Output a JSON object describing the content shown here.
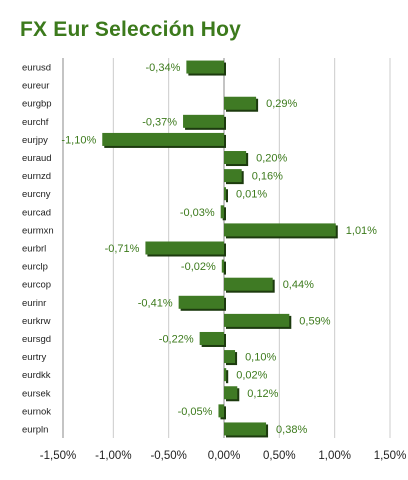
{
  "chart_data": {
    "type": "bar",
    "orientation": "horizontal",
    "title": "FX Eur Selección Hoy",
    "categories": [
      "eurusd",
      "eureur",
      "eurgbp",
      "eurchf",
      "eurjpy",
      "euraud",
      "eurnzd",
      "eurcny",
      "eurcad",
      "eurmxn",
      "eurbrl",
      "eurclp",
      "eurcop",
      "eurinr",
      "eurkrw",
      "eursgd",
      "eurtry",
      "eurdkk",
      "eursek",
      "eurnok",
      "eurpln"
    ],
    "values": [
      -0.34,
      null,
      0.29,
      -0.37,
      -1.1,
      0.2,
      0.16,
      0.01,
      -0.03,
      1.01,
      -0.71,
      -0.02,
      0.44,
      -0.41,
      0.59,
      -0.22,
      0.1,
      0.02,
      0.12,
      -0.05,
      0.38
    ],
    "value_labels": [
      "-0,34%",
      "",
      "0,29%",
      "-0,37%",
      "-1,10%",
      "0,20%",
      "0,16%",
      "0,01%",
      "-0,03%",
      "1,01%",
      "-0,71%",
      "-0,02%",
      "0,44%",
      "-0,41%",
      "0,59%",
      "-0,22%",
      "0,10%",
      "0,02%",
      "0,12%",
      "-0,05%",
      "0,38%"
    ],
    "xlim": [
      -1.5,
      1.5
    ],
    "xticks": [
      -1.5,
      -1.0,
      -0.5,
      0.0,
      0.5,
      1.0,
      1.5
    ],
    "xtick_labels": [
      "-1,50%",
      "-1,00%",
      "-0,50%",
      "0,00%",
      "0,50%",
      "1,00%",
      "1,50%"
    ],
    "grid": true,
    "colors": {
      "bar": "#3f7a24",
      "bar_shadow": "#1c3a0e",
      "label": "#3c7a1c",
      "grid": "#cccccc",
      "frame": "#888888"
    }
  }
}
